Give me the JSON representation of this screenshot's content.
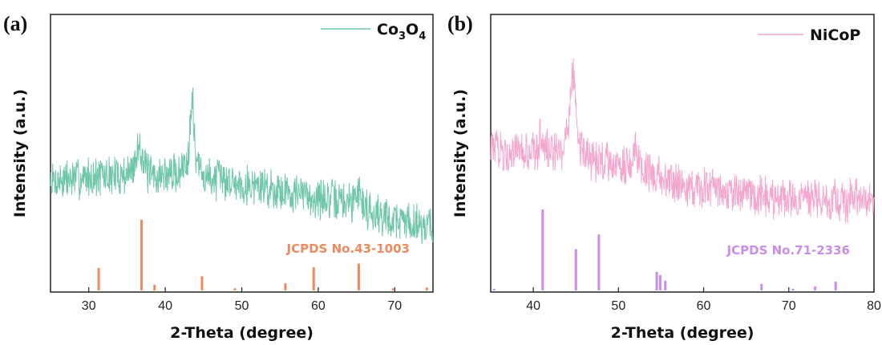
{
  "chart_data": [
    {
      "panel_label": "(a)",
      "type": "line",
      "xlabel": "2-Theta (degree)",
      "ylabel": "Intensity (a.u.)",
      "xlim": [
        25,
        75
      ],
      "x_ticks": [
        30,
        40,
        50,
        60,
        70
      ],
      "y_ticks_shown": false,
      "legend": {
        "placement": "top-right",
        "label_main": "Co",
        "sub1": "3",
        "mid": "O",
        "sub2": "4"
      },
      "series": [
        {
          "name": "Co3O4",
          "color": "#6fc7a8",
          "noise": 0.085,
          "x": [
            25,
            30,
            32,
            34,
            35.5,
            36.2,
            36.6,
            36.9,
            37.3,
            38,
            40,
            42,
            43,
            43.3,
            43.5,
            43.7,
            44,
            45,
            47,
            50,
            55,
            60,
            64.5,
            65.2,
            66,
            68,
            70,
            72,
            75
          ],
          "y": [
            0.28,
            0.3,
            0.3,
            0.31,
            0.32,
            0.38,
            0.48,
            0.42,
            0.35,
            0.3,
            0.31,
            0.32,
            0.4,
            0.6,
            0.72,
            0.56,
            0.38,
            0.3,
            0.29,
            0.27,
            0.24,
            0.2,
            0.18,
            0.25,
            0.16,
            0.12,
            0.1,
            0.09,
            0.07
          ]
        }
      ],
      "reference": {
        "label": "JCPDS No.43-1003",
        "color": "#f08a5d",
        "peaks": [
          {
            "x": 31.3,
            "y": 0.32
          },
          {
            "x": 36.9,
            "y": 1.0
          },
          {
            "x": 38.6,
            "y": 0.08
          },
          {
            "x": 44.8,
            "y": 0.2
          },
          {
            "x": 49.1,
            "y": 0.03
          },
          {
            "x": 55.7,
            "y": 0.1
          },
          {
            "x": 59.4,
            "y": 0.33
          },
          {
            "x": 65.3,
            "y": 0.38
          },
          {
            "x": 69.8,
            "y": 0.03
          },
          {
            "x": 74.2,
            "y": 0.04
          }
        ]
      }
    },
    {
      "panel_label": "(b)",
      "type": "line",
      "xlabel": "2-Theta (degree)",
      "ylabel": "Intensity (a.u.)",
      "xlim": [
        35,
        80
      ],
      "x_ticks": [
        40,
        50,
        60,
        70,
        80
      ],
      "y_ticks_shown": false,
      "legend": {
        "placement": "top-right",
        "label_main": "NiCoP"
      },
      "series": [
        {
          "name": "NiCoP",
          "color": "#f4a6cf",
          "noise": 0.085,
          "x": [
            35,
            37,
            39,
            40.5,
            41,
            41.4,
            42,
            43.5,
            44.3,
            44.7,
            45.1,
            45.8,
            47,
            49,
            51.5,
            52,
            52.5,
            55,
            58,
            62,
            66,
            70,
            74,
            77,
            80
          ],
          "y": [
            0.44,
            0.42,
            0.4,
            0.43,
            0.52,
            0.46,
            0.4,
            0.41,
            0.62,
            0.82,
            0.55,
            0.4,
            0.38,
            0.37,
            0.36,
            0.44,
            0.35,
            0.3,
            0.26,
            0.23,
            0.21,
            0.2,
            0.19,
            0.19,
            0.18
          ]
        }
      ],
      "reference": {
        "label": "JCPDS No.71-2336",
        "color": "#c88ee8",
        "peaks": [
          {
            "x": 35.4,
            "y": 0.02
          },
          {
            "x": 41.1,
            "y": 1.0
          },
          {
            "x": 45.0,
            "y": 0.51
          },
          {
            "x": 47.7,
            "y": 0.69
          },
          {
            "x": 54.5,
            "y": 0.23
          },
          {
            "x": 54.9,
            "y": 0.19
          },
          {
            "x": 55.5,
            "y": 0.12
          },
          {
            "x": 66.8,
            "y": 0.08
          },
          {
            "x": 70.5,
            "y": 0.02
          },
          {
            "x": 73.1,
            "y": 0.05
          },
          {
            "x": 75.5,
            "y": 0.11
          }
        ]
      }
    }
  ]
}
